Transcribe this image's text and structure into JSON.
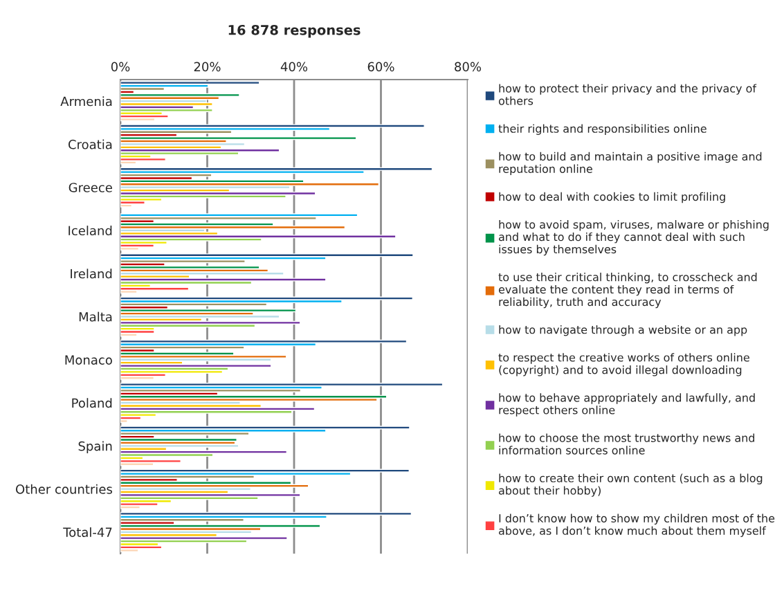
{
  "chart_data": {
    "type": "bar",
    "orientation": "horizontal",
    "title": "16 878 responses",
    "categories": [
      "Armenia",
      "Croatia",
      "Greece",
      "Iceland",
      "Ireland",
      "Malta",
      "Monaco",
      "Poland",
      "Spain",
      "Other countries",
      "Total-47"
    ],
    "xlim": [
      0,
      80
    ],
    "xticks": [
      {
        "value": 0,
        "label": "0%"
      },
      {
        "value": 20,
        "label": "20%"
      },
      {
        "value": 40,
        "label": "40%"
      },
      {
        "value": 60,
        "label": "60%"
      },
      {
        "value": 80,
        "label": "80%"
      }
    ],
    "grid": "x",
    "legend": "right",
    "series": [
      {
        "name": "how to protect their privacy and the privacy of others",
        "color": "#1f497d",
        "values": [
          32.0,
          70.0,
          71.8,
          null,
          67.4,
          67.3,
          65.9,
          74.2,
          66.6,
          66.5,
          67.0
        ]
      },
      {
        "name": "their rights and responsibilities online",
        "color": "#00b0f0",
        "values": [
          20.2,
          48.2,
          56.1,
          54.6,
          47.3,
          51.0,
          45.0,
          46.4,
          47.3,
          53.0,
          47.5
        ]
      },
      {
        "name": "how to build and maintain a positive image and reputation online",
        "color": "#9c9060",
        "values": [
          10.1,
          25.6,
          21.0,
          45.1,
          28.7,
          33.7,
          28.5,
          41.5,
          29.6,
          30.8,
          28.4
        ]
      },
      {
        "name": "how to deal with cookies to limit profiling",
        "color": "#c00000",
        "values": [
          3.1,
          13.0,
          16.5,
          7.7,
          10.2,
          10.9,
          7.8,
          22.4,
          7.8,
          13.1,
          12.4
        ]
      },
      {
        "name": "how to avoid spam, viruses, malware or phishing and what to do if they cannot deal with such issues by themselves",
        "color": "#00934a",
        "values": [
          27.4,
          54.3,
          42.2,
          35.2,
          32.0,
          40.4,
          26.1,
          61.3,
          26.8,
          39.3,
          46.0
        ]
      },
      {
        "name": "to use their critical thinking, to crosscheck and evaluate the content they read in terms of reliability, truth and accuracy",
        "color": "#e36c0a",
        "values": [
          22.7,
          24.4,
          59.5,
          51.7,
          34.0,
          30.6,
          38.2,
          59.1,
          26.4,
          43.3,
          32.3
        ]
      },
      {
        "name": "how to navigate through a website or an app",
        "color": "#b7dde8",
        "values": [
          19.8,
          28.6,
          39.0,
          19.4,
          37.6,
          36.6,
          34.7,
          27.6,
          27.2,
          30.0,
          30.2
        ]
      },
      {
        "name": "to respect the creative works of others online (copyright) and to avoid illegal downloading",
        "color": "#ffc000",
        "values": [
          21.2,
          23.2,
          25.1,
          22.4,
          15.9,
          18.7,
          14.3,
          32.4,
          10.6,
          24.8,
          22.2
        ]
      },
      {
        "name": "how to behave appropriately and lawfully, and respect others online",
        "color": "#7030a0",
        "values": [
          16.8,
          36.6,
          44.9,
          63.4,
          47.3,
          41.4,
          34.7,
          44.7,
          38.3,
          41.4,
          38.4
        ]
      },
      {
        "name": "how to choose the most trustworthy news and information sources online",
        "color": "#92d050",
        "values": [
          21.2,
          27.2,
          38.1,
          32.5,
          30.2,
          31.0,
          24.8,
          39.5,
          21.3,
          31.7,
          29.1
        ]
      },
      {
        "name": "how to create their own content (such as a blog about their hobby)",
        "color": "#f0e800",
        "values": [
          9.6,
          7.0,
          9.5,
          10.7,
          6.9,
          7.8,
          23.5,
          8.2,
          5.2,
          11.7,
          8.7
        ]
      },
      {
        "name": "I don’t know how to show my children most of the above, as I don’t know much about them myself",
        "color": "#ff4040",
        "values": [
          11.0,
          10.4,
          5.6,
          7.7,
          15.7,
          7.8,
          10.4,
          4.7,
          13.9,
          8.6,
          9.5
        ]
      },
      {
        "color": "#fcd5b5",
        "values": [
          7.9,
          3.6,
          2.6,
          4.2,
          3.8,
          3.8,
          7.7,
          1.6,
          7.6,
          4.5,
          4.1
        ]
      }
    ]
  }
}
